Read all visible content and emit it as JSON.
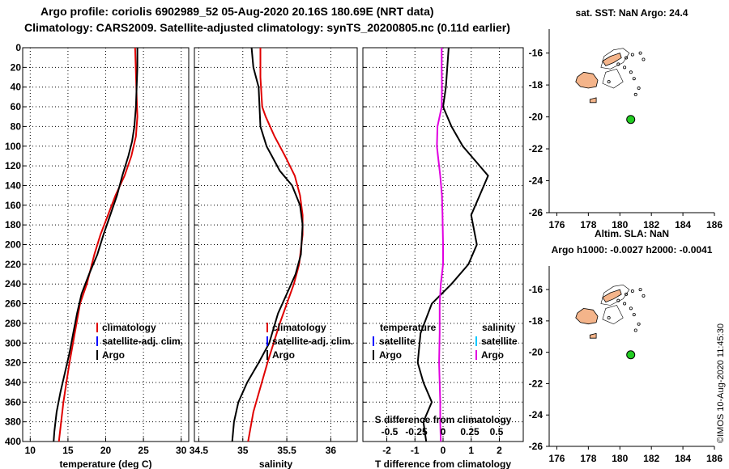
{
  "header": {
    "line1": "Argo profile: coriolis 6902989_52 05-Aug-2020 20.16S 180.69E (NRT data)",
    "line2": "Climatology: CARS2009. Satellite-adjusted climatology: synTS_20200805.nc (0.11d earlier)"
  },
  "timestamp": "©IMOS 10-Aug-2020 11:45:30",
  "colors": {
    "argo": "#000000",
    "climatology": "#e00000",
    "satellite": "#0000ff",
    "salinity_diff": "#e000e0",
    "salinity_satellite": "#00c8ff",
    "land": "#f4b48a"
  },
  "chart_data": [
    {
      "id": "temperature",
      "type": "line",
      "xlabel": "temperature (deg C)",
      "ylabel": "depth",
      "xlim": [
        9,
        31
      ],
      "ylim": [
        400,
        0
      ],
      "xticks": [
        10,
        15,
        20,
        25,
        30
      ],
      "xtick_labels": [
        "10",
        "15",
        "20",
        "25",
        "30"
      ],
      "yticks": [
        0,
        20,
        40,
        60,
        80,
        100,
        120,
        140,
        160,
        180,
        200,
        220,
        240,
        260,
        280,
        300,
        320,
        340,
        360,
        380,
        400
      ],
      "grid": true,
      "legend": [
        "climatology",
        "satellite-adj. clim.",
        "Argo"
      ],
      "series": [
        {
          "name": "climatology",
          "color": "#e00000",
          "x": [
            23.9,
            24.0,
            24.1,
            24.2,
            24.0,
            23.4,
            22.5,
            21.3,
            20.3,
            19.3,
            18.5,
            17.5,
            16.6,
            15.9,
            15.2,
            14.8,
            14.4,
            14.1,
            13.8
          ],
          "y": [
            0,
            25,
            50,
            70,
            90,
            110,
            130,
            150,
            170,
            190,
            210,
            240,
            260,
            290,
            320,
            340,
            360,
            380,
            400
          ]
        },
        {
          "name": "Argo",
          "color": "#000000",
          "x": [
            24.2,
            24.2,
            24.1,
            24.0,
            23.8,
            23.5,
            23.0,
            22.2,
            21.5,
            20.6,
            19.7,
            18.9,
            17.8,
            16.8,
            16.2,
            15.7,
            15.2,
            14.6,
            14.0,
            13.5,
            13.2,
            13.1
          ],
          "y": [
            0,
            20,
            40,
            60,
            80,
            95,
            110,
            130,
            150,
            170,
            190,
            210,
            230,
            250,
            270,
            290,
            310,
            330,
            350,
            370,
            390,
            400
          ]
        }
      ]
    },
    {
      "id": "salinity",
      "type": "line",
      "xlabel": "salinity",
      "xlim": [
        34.45,
        36.3
      ],
      "ylim": [
        400,
        0
      ],
      "xticks": [
        34.5,
        35,
        35.5,
        36
      ],
      "xtick_labels": [
        "34.5",
        "35",
        "35.5",
        "36"
      ],
      "grid": true,
      "legend": [
        "climatology",
        "satellite-adj. clim.",
        "Argo"
      ],
      "series": [
        {
          "name": "climatology",
          "color": "#e00000",
          "x": [
            35.2,
            35.2,
            35.22,
            35.26,
            35.36,
            35.48,
            35.59,
            35.65,
            35.68,
            35.68,
            35.64,
            35.58,
            35.5,
            35.42,
            35.35,
            35.28,
            35.2,
            35.12,
            35.06
          ],
          "y": [
            0,
            30,
            60,
            70,
            90,
            110,
            130,
            150,
            170,
            190,
            220,
            240,
            260,
            280,
            300,
            320,
            345,
            370,
            400
          ]
        },
        {
          "name": "Argo",
          "color": "#000000",
          "x": [
            35.1,
            35.12,
            35.18,
            35.2,
            35.27,
            35.33,
            35.42,
            35.56,
            35.65,
            35.68,
            35.66,
            35.6,
            35.5,
            35.4,
            35.3,
            35.18,
            35.05,
            34.95,
            34.9,
            34.88
          ],
          "y": [
            0,
            20,
            40,
            80,
            100,
            110,
            125,
            140,
            160,
            180,
            210,
            230,
            250,
            270,
            300,
            320,
            340,
            360,
            380,
            400
          ]
        }
      ]
    },
    {
      "id": "difference",
      "type": "line",
      "xlabel": "T difference from climatology",
      "top_xlabel": "S difference from climatology",
      "xlim": [
        -2.85,
        2.85
      ],
      "ylim": [
        400,
        0
      ],
      "xticks": [
        -2,
        -1,
        0,
        1,
        2
      ],
      "xtick_labels": [
        "-2",
        "-1",
        "0",
        "1",
        "2"
      ],
      "top_xticks": [
        -0.5,
        -0.25,
        0,
        0.25,
        0.5
      ],
      "top_xtick_labels": [
        "-0.5",
        "-0.25",
        "0",
        "0.25",
        "0.5"
      ],
      "grid": true,
      "legend_temperature": {
        "title": "temperature",
        "items": [
          "satellite",
          "Argo"
        ]
      },
      "legend_salinity": {
        "title": "salinity",
        "items": [
          "satellite",
          "Argo"
        ]
      },
      "series": [
        {
          "name": "temperature diff (Argo)",
          "color": "#000000",
          "x": [
            0.2,
            0.15,
            0.1,
            0.0,
            0.3,
            0.7,
            1.0,
            1.6,
            1.3,
            1.0,
            1.2,
            0.9,
            0.3,
            -0.4,
            -0.8,
            -0.9,
            -0.7,
            -0.4,
            -0.7,
            -0.6
          ],
          "y": [
            0,
            20,
            40,
            60,
            80,
            100,
            110,
            130,
            150,
            170,
            200,
            220,
            240,
            260,
            290,
            320,
            340,
            360,
            380,
            400
          ]
        },
        {
          "name": "salinity diff (Argo)",
          "color": "#e000e0",
          "x": [
            -0.05,
            -0.05,
            -0.04,
            -0.05,
            -0.2,
            -0.22,
            -0.18,
            -0.1,
            -0.04,
            -0.02,
            0.0,
            0.0,
            -0.08,
            -0.12,
            -0.12,
            -0.14,
            -0.12,
            -0.1,
            -0.1,
            -0.08
          ],
          "y": [
            0,
            20,
            40,
            60,
            80,
            100,
            110,
            130,
            150,
            170,
            200,
            220,
            240,
            260,
            290,
            320,
            340,
            360,
            380,
            400
          ]
        }
      ]
    },
    {
      "id": "map_sst",
      "type": "scatter",
      "title": "sat. SST: NaN Argo: 24.4",
      "xlim": [
        175,
        186
      ],
      "ylim": [
        -26,
        -14.5
      ],
      "xticks": [
        176,
        178,
        180,
        182,
        184,
        186
      ],
      "xtick_labels": [
        "176",
        "178",
        "180",
        "182",
        "184",
        "186"
      ],
      "yticks": [
        -16,
        -18,
        -20,
        -22,
        -24,
        -26
      ],
      "ytick_labels": [
        "-16",
        "-18",
        "-20",
        "-22",
        "-24",
        "-26"
      ],
      "point": {
        "lon": 180.69,
        "lat": -20.16
      }
    },
    {
      "id": "map_sla",
      "type": "scatter",
      "title": "Altim. SLA: NaN",
      "subtitle": "Argo h1000: -0.0027 h2000: -0.0041",
      "xlim": [
        175,
        186
      ],
      "ylim": [
        -26,
        -14.5
      ],
      "xticks": [
        176,
        178,
        180,
        182,
        184,
        186
      ],
      "xtick_labels": [
        "176",
        "178",
        "180",
        "182",
        "184",
        "186"
      ],
      "yticks": [
        -16,
        -18,
        -20,
        -22,
        -24,
        -26
      ],
      "ytick_labels": [
        "-16",
        "-18",
        "-20",
        "-22",
        "-24",
        "-26"
      ],
      "point": {
        "lon": 180.69,
        "lat": -20.16
      }
    }
  ]
}
